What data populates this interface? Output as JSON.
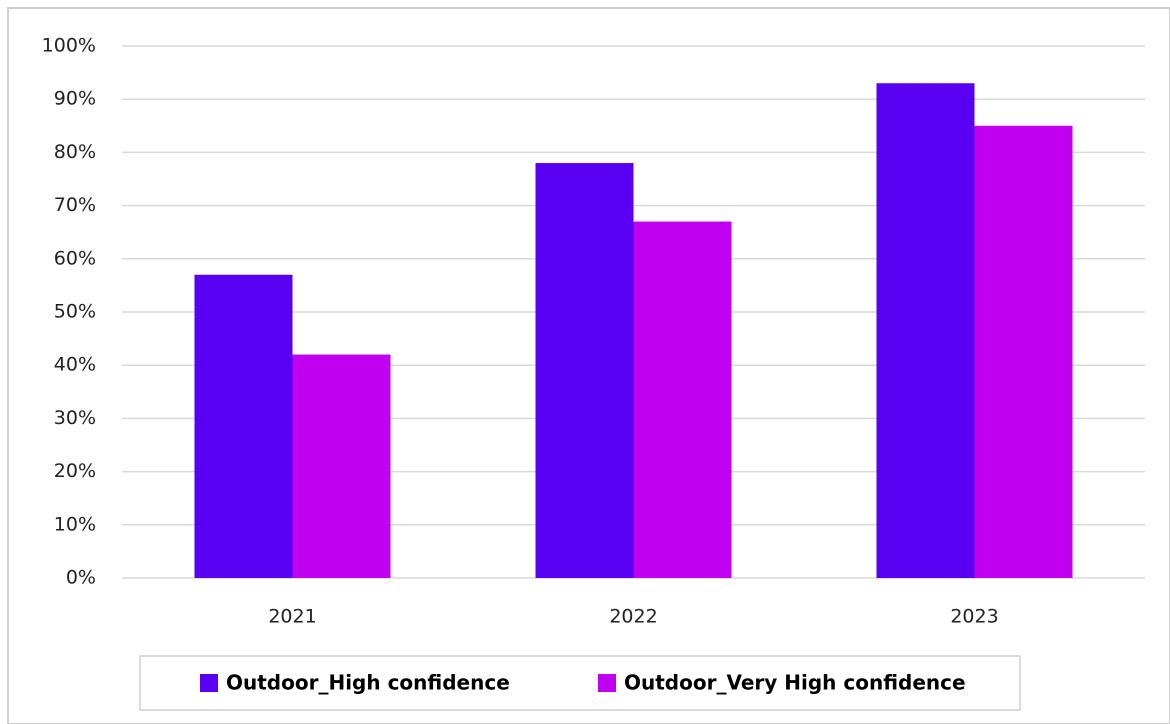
{
  "chart_data": {
    "type": "bar",
    "categories": [
      "2021",
      "2022",
      "2023"
    ],
    "series": [
      {
        "name": "Outdoor_High confidence",
        "color": "#5a00f2",
        "values": [
          57,
          78,
          93
        ]
      },
      {
        "name": "Outdoor_Very High confidence",
        "color": "#c000f0",
        "values": [
          42,
          67,
          85
        ]
      }
    ],
    "ylim": [
      0,
      100
    ],
    "yticks": [
      {
        "value": 0,
        "label": "0%"
      },
      {
        "value": 10,
        "label": "10%"
      },
      {
        "value": 20,
        "label": "20%"
      },
      {
        "value": 30,
        "label": "30%"
      },
      {
        "value": 40,
        "label": "40%"
      },
      {
        "value": 50,
        "label": "50%"
      },
      {
        "value": 60,
        "label": "60%"
      },
      {
        "value": 70,
        "label": "70%"
      },
      {
        "value": 80,
        "label": "80%"
      },
      {
        "value": 90,
        "label": "90%"
      },
      {
        "value": 100,
        "label": "100%"
      }
    ],
    "grid": true,
    "legend": "bottom"
  }
}
